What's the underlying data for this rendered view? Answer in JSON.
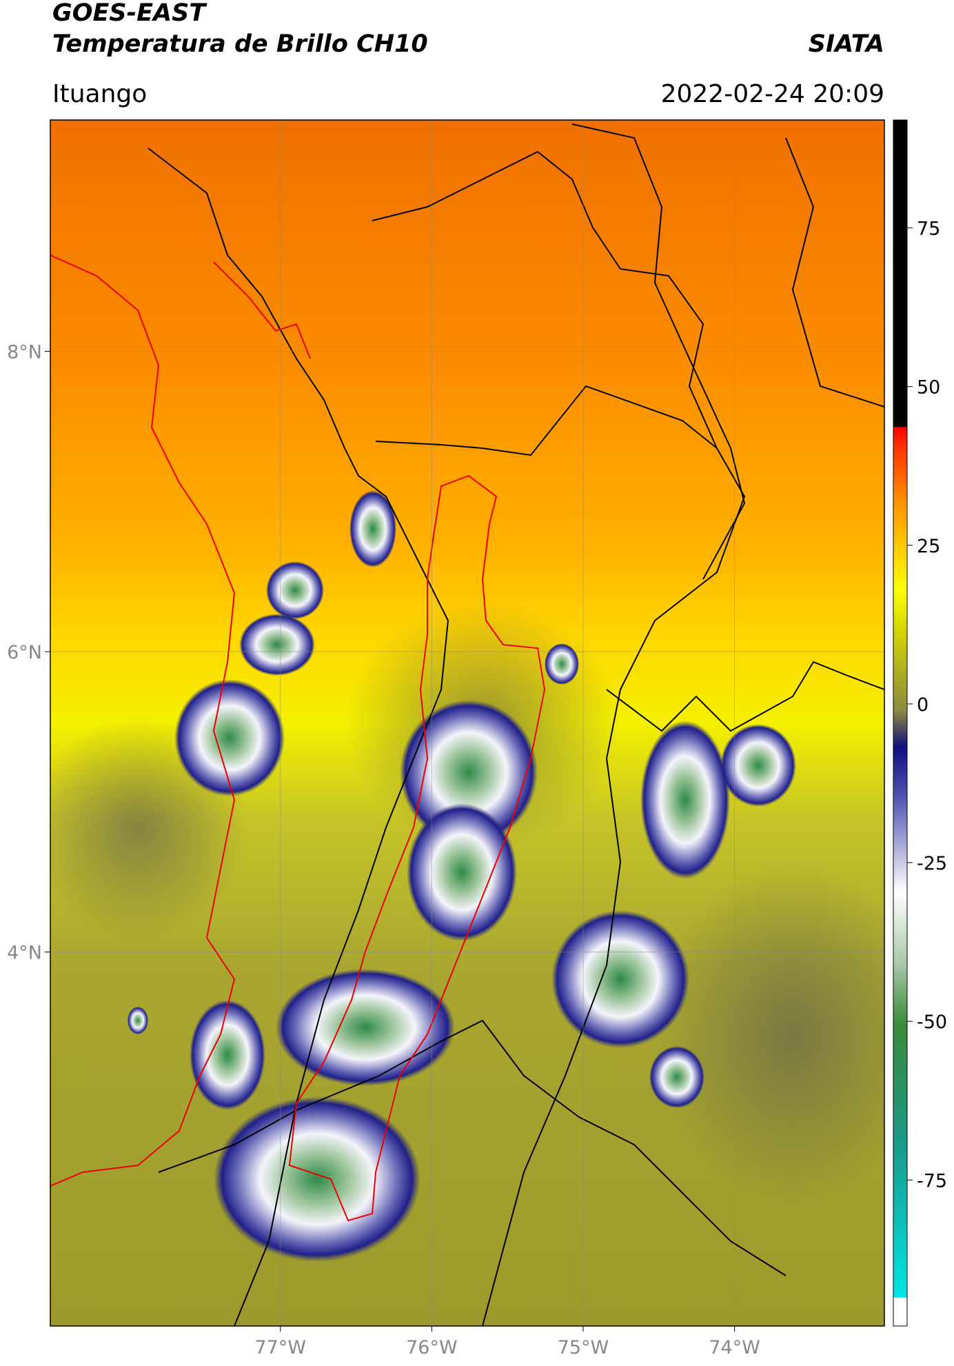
{
  "chart_data": {
    "type": "map",
    "title": "GOES-EAST",
    "subtitle": "Temperatura de Brillo CH10",
    "source": "SIATA",
    "location": "Ituango",
    "timestamp": "2022-02-24 20:09",
    "xlim": [
      -78.52,
      -73.01
    ],
    "ylim": [
      1.51,
      9.54
    ],
    "xticks": [
      {
        "value": -77,
        "label": "77°W"
      },
      {
        "value": -76,
        "label": "76°W"
      },
      {
        "value": -75,
        "label": "75°W"
      },
      {
        "value": -74,
        "label": "74°W"
      }
    ],
    "yticks": [
      {
        "value": 8,
        "label": "8°N"
      },
      {
        "value": 6,
        "label": "6°N"
      },
      {
        "value": 4,
        "label": "4°N"
      }
    ],
    "grid": true,
    "colorbar": {
      "clim": [
        -98,
        92
      ],
      "ticks": [
        75,
        50,
        25,
        0,
        -25,
        -50,
        -75
      ]
    }
  }
}
